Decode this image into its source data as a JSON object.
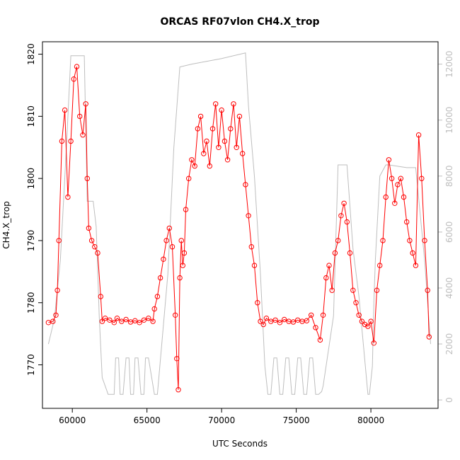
{
  "chart_data": {
    "type": "line",
    "title": "ORCAS RF07vlon CH4.X_trop",
    "xlabel": "UTC Seconds",
    "ylabel": "CH4.X_trop",
    "xlim": [
      58000,
      84500
    ],
    "ylim": [
      1763,
      1822
    ],
    "y2lim": [
      -300,
      12800
    ],
    "x_ticks": [
      60000,
      65000,
      70000,
      75000,
      80000
    ],
    "x_tick_labels": [
      "60000",
      "65000",
      "70000",
      "75000",
      "80000"
    ],
    "y_ticks": [
      1770,
      1780,
      1790,
      1800,
      1810,
      1820
    ],
    "y_tick_labels": [
      "1770",
      "1780",
      "1790",
      "1800",
      "1810",
      "1820"
    ],
    "y2_ticks": [
      0,
      2000,
      4000,
      6000,
      8000,
      10000,
      12000
    ],
    "y2_tick_labels": [
      "0",
      "2000",
      "4000",
      "6000",
      "8000",
      "10000",
      "12000"
    ],
    "grid": false,
    "series": [
      {
        "role": "CH4.X_trop",
        "axis": "left",
        "style": "points-and-lines",
        "color": "#ff0000",
        "x": [
          58400,
          58700,
          58900,
          59000,
          59100,
          59300,
          59500,
          59700,
          59900,
          60100,
          60300,
          60500,
          60700,
          60900,
          61000,
          61100,
          61300,
          61500,
          61700,
          61900,
          62000,
          62200,
          62500,
          62800,
          63000,
          63300,
          63600,
          63900,
          64200,
          64500,
          64800,
          65100,
          65400,
          65500,
          65700,
          65900,
          66100,
          66300,
          66500,
          66700,
          66900,
          67000,
          67100,
          67200,
          67300,
          67400,
          67500,
          67600,
          67800,
          68000,
          68200,
          68400,
          68600,
          68800,
          69000,
          69200,
          69400,
          69600,
          69800,
          70000,
          70200,
          70400,
          70600,
          70800,
          71000,
          71200,
          71400,
          71600,
          71800,
          72000,
          72200,
          72400,
          72600,
          72800,
          73000,
          73300,
          73600,
          73900,
          74200,
          74500,
          74800,
          75100,
          75400,
          75700,
          76000,
          76300,
          76600,
          76800,
          77000,
          77200,
          77400,
          77600,
          77800,
          78000,
          78200,
          78400,
          78600,
          78800,
          79000,
          79200,
          79400,
          79600,
          79800,
          80000,
          80200,
          80400,
          80600,
          80800,
          81000,
          81200,
          81400,
          81600,
          81800,
          82000,
          82200,
          82400,
          82600,
          82800,
          83000,
          83200,
          83400,
          83600,
          83800,
          83900
        ],
        "y": [
          1776.8,
          1777,
          1778,
          1782,
          1790,
          1806,
          1811,
          1797,
          1806,
          1816,
          1818,
          1810,
          1807,
          1812,
          1800,
          1792,
          1790,
          1789,
          1788,
          1781,
          1777,
          1777.5,
          1777.2,
          1776.8,
          1777.5,
          1777,
          1777.3,
          1776.9,
          1777.1,
          1776.8,
          1777.2,
          1777.5,
          1777,
          1779,
          1781,
          1784,
          1787,
          1790,
          1792,
          1789,
          1778,
          1771,
          1766,
          1784,
          1790,
          1786,
          1788,
          1795,
          1800,
          1803,
          1802,
          1808,
          1810,
          1804,
          1806,
          1802,
          1808,
          1812,
          1805,
          1811,
          1806,
          1803,
          1808,
          1812,
          1805,
          1810,
          1804,
          1799,
          1794,
          1789,
          1786,
          1780,
          1777,
          1776.5,
          1777.5,
          1777,
          1777.2,
          1776.8,
          1777.3,
          1777,
          1776.9,
          1777.2,
          1777,
          1777.1,
          1778,
          1776,
          1774,
          1778,
          1784,
          1786,
          1782,
          1788,
          1790,
          1794,
          1796,
          1793,
          1788,
          1782,
          1780,
          1778,
          1777,
          1776.5,
          1776.2,
          1777,
          1773.5,
          1782,
          1786,
          1790,
          1797,
          1803,
          1800,
          1796,
          1799,
          1800,
          1797,
          1793,
          1790,
          1788,
          1786,
          1807,
          1800,
          1790,
          1782,
          1774.5
        ]
      },
      {
        "role": "altitude",
        "axis": "right",
        "style": "line",
        "color": "#bebebe",
        "x": [
          58400,
          58800,
          59200,
          59600,
          59900,
          60800,
          61000,
          61400,
          61600,
          61800,
          62000,
          62400,
          62800,
          62900,
          63100,
          63200,
          63400,
          63600,
          63800,
          63900,
          64100,
          64200,
          64400,
          64600,
          64800,
          64900,
          65100,
          65500,
          65700,
          66400,
          66800,
          67200,
          68000,
          70000,
          71600,
          71800,
          72200,
          72600,
          72900,
          73100,
          73300,
          73500,
          73700,
          73900,
          74100,
          74300,
          74500,
          74700,
          74900,
          75100,
          75300,
          75500,
          75700,
          75900,
          76100,
          76300,
          76500,
          76700,
          76800,
          77500,
          77800,
          78400,
          78800,
          79200,
          79800,
          79900,
          80100,
          80200,
          80300,
          80600,
          81000,
          81200,
          82400,
          83000,
          83600,
          84000
        ],
        "y": [
          2000,
          2900,
          5000,
          9000,
          12300,
          12300,
          7100,
          7100,
          6200,
          3000,
          800,
          200,
          200,
          1500,
          1500,
          200,
          200,
          1500,
          1500,
          200,
          200,
          1500,
          1500,
          200,
          200,
          1500,
          1500,
          200,
          200,
          4500,
          9000,
          11900,
          12000,
          12200,
          12400,
          10500,
          8000,
          4500,
          1200,
          200,
          200,
          1500,
          1500,
          200,
          200,
          1500,
          1500,
          200,
          200,
          1500,
          1500,
          200,
          200,
          1500,
          1500,
          200,
          200,
          300,
          500,
          3000,
          8400,
          8400,
          5400,
          3700,
          200,
          200,
          1200,
          3500,
          5000,
          8000,
          8400,
          8400,
          8300,
          8300,
          5000,
          2000
        ]
      }
    ]
  }
}
